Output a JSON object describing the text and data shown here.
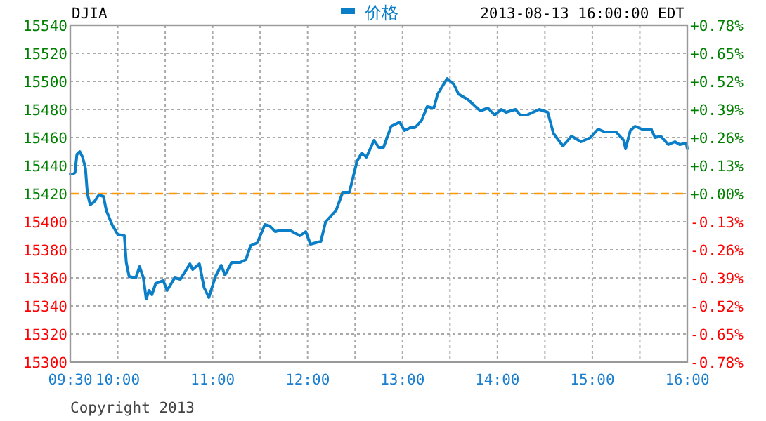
{
  "chart_data": {
    "type": "line",
    "title": "DJIA",
    "subtitle": "2013-08-13 16:00:00 EDT",
    "legend": "top",
    "grid": true,
    "line_style": "solid",
    "x": [
      9.5,
      9.51,
      9.53,
      9.55,
      9.57,
      9.6,
      9.63,
      9.66,
      9.68,
      9.71,
      9.75,
      9.8,
      9.85,
      9.88,
      9.94,
      10.0,
      10.07,
      10.09,
      10.12,
      10.19,
      10.23,
      10.27,
      10.3,
      10.33,
      10.36,
      10.4,
      10.48,
      10.52,
      10.6,
      10.66,
      10.76,
      10.79,
      10.86,
      10.91,
      10.96,
      11.03,
      11.09,
      11.13,
      11.2,
      11.29,
      11.35,
      11.4,
      11.47,
      11.55,
      11.6,
      11.66,
      11.72,
      11.81,
      11.92,
      11.98,
      12.03,
      12.14,
      12.19,
      12.3,
      12.37,
      12.44,
      12.52,
      12.57,
      12.62,
      12.7,
      12.75,
      12.8,
      12.88,
      12.97,
      13.02,
      13.08,
      13.13,
      13.2,
      13.26,
      13.33,
      13.37,
      13.47,
      13.54,
      13.59,
      13.69,
      13.82,
      13.9,
      13.97,
      14.04,
      14.09,
      14.19,
      14.24,
      14.31,
      14.44,
      14.53,
      14.59,
      14.69,
      14.78,
      14.88,
      14.98,
      15.06,
      15.13,
      15.25,
      15.33,
      15.35,
      15.4,
      15.45,
      15.52,
      15.62,
      15.66,
      15.72,
      15.8,
      15.87,
      15.92,
      15.99,
      16.0
    ],
    "series": [
      {
        "name": "价格",
        "color": "#0a7fc8",
        "values": [
          15434,
          15434,
          15434,
          15435,
          15448,
          15450,
          15446,
          15438,
          15420,
          15412,
          15414,
          15419,
          15418,
          15408,
          15398,
          15391,
          15390,
          15371,
          15361,
          15360,
          15368,
          15360,
          15345,
          15351,
          15348,
          15356,
          15358,
          15351,
          15360,
          15359,
          15370,
          15366,
          15370,
          15353,
          15346,
          15361,
          15369,
          15362,
          15371,
          15371,
          15373,
          15383,
          15385,
          15398,
          15397,
          15393,
          15394,
          15394,
          15390,
          15393,
          15384,
          15386,
          15400,
          15408,
          15421,
          15421,
          15443,
          15449,
          15446,
          15458,
          15453,
          15453,
          15468,
          15471,
          15465,
          15467,
          15467,
          15472,
          15482,
          15481,
          15491,
          15502,
          15498,
          15491,
          15487,
          15479,
          15481,
          15476,
          15480,
          15478,
          15480,
          15476,
          15476,
          15480,
          15478,
          15463,
          15454,
          15461,
          15457,
          15460,
          15466,
          15464,
          15464,
          15458,
          15452,
          15465,
          15468,
          15466,
          15466,
          15460,
          15461,
          15455,
          15457,
          15455,
          15456,
          15452
        ]
      }
    ],
    "xlim": [
      9.5,
      16
    ],
    "xticks": [
      {
        "value": 9.5,
        "label": "09:30"
      },
      {
        "value": 10,
        "label": "10:00"
      },
      {
        "value": 10.5,
        "label": null
      },
      {
        "value": 11,
        "label": "11:00"
      },
      {
        "value": 11.5,
        "label": null
      },
      {
        "value": 12,
        "label": "12:00"
      },
      {
        "value": 12.5,
        "label": null
      },
      {
        "value": 13,
        "label": "13:00"
      },
      {
        "value": 13.5,
        "label": null
      },
      {
        "value": 14,
        "label": "14:00"
      },
      {
        "value": 14.5,
        "label": null
      },
      {
        "value": 15,
        "label": "15:00"
      },
      {
        "value": 15.5,
        "label": null
      },
      {
        "value": 16,
        "label": "16:00"
      }
    ],
    "ylim": [
      15300,
      15540
    ],
    "yticks": [
      15300,
      15320,
      15340,
      15360,
      15380,
      15400,
      15420,
      15440,
      15460,
      15480,
      15500,
      15520,
      15540
    ],
    "y2lim": [
      -0.78,
      0.78
    ],
    "y2ticks": [
      {
        "value": -0.78,
        "label": "-0.78%"
      },
      {
        "value": -0.65,
        "label": "-0.65%"
      },
      {
        "value": -0.52,
        "label": "-0.52%"
      },
      {
        "value": -0.39,
        "label": "-0.39%"
      },
      {
        "value": -0.26,
        "label": "-0.26%"
      },
      {
        "value": -0.13,
        "label": "-0.13%"
      },
      {
        "value": 0,
        "label": "+0.00%"
      },
      {
        "value": 0.13,
        "label": "+0.13%"
      },
      {
        "value": 0.26,
        "label": "+0.26%"
      },
      {
        "value": 0.39,
        "label": "+0.39%"
      },
      {
        "value": 0.52,
        "label": "+0.52%"
      },
      {
        "value": 0.65,
        "label": "+0.65%"
      },
      {
        "value": 0.78,
        "label": "+0.78%"
      }
    ],
    "ref_lines": [
      {
        "axis": "y",
        "value": 15420,
        "color": "#ff9900",
        "line_style": "dashed"
      }
    ],
    "annotations": [
      "Copyright 2013"
    ]
  }
}
